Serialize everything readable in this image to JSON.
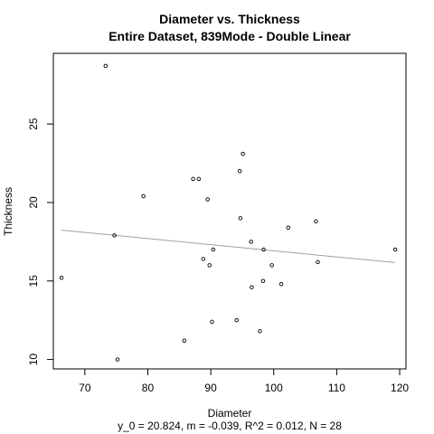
{
  "chart_data": {
    "type": "scatter",
    "title": "Diameter vs. Thickness",
    "subtitle": "Entire Dataset, 839Mode - Double Linear",
    "xlabel": "Diameter",
    "ylabel": "Thickness",
    "footer": "y_0 = 20.824, m = -0.039, R^2 = 0.012, N = 28",
    "xlim": [
      65.0,
      121.0
    ],
    "ylim": [
      9.4,
      29.5
    ],
    "xticks": [
      70,
      80,
      90,
      100,
      110,
      120
    ],
    "yticks": [
      10,
      15,
      20,
      25
    ],
    "grid": false,
    "points": [
      {
        "x": 66.3,
        "y": 15.2
      },
      {
        "x": 73.3,
        "y": 28.7
      },
      {
        "x": 74.7,
        "y": 17.9
      },
      {
        "x": 75.2,
        "y": 10.0
      },
      {
        "x": 79.3,
        "y": 20.4
      },
      {
        "x": 85.8,
        "y": 11.2
      },
      {
        "x": 87.2,
        "y": 21.5
      },
      {
        "x": 88.1,
        "y": 21.5
      },
      {
        "x": 88.8,
        "y": 16.4
      },
      {
        "x": 89.5,
        "y": 20.2
      },
      {
        "x": 89.8,
        "y": 16.0
      },
      {
        "x": 90.2,
        "y": 12.4
      },
      {
        "x": 90.4,
        "y": 17.0
      },
      {
        "x": 94.1,
        "y": 12.5
      },
      {
        "x": 94.6,
        "y": 22.0
      },
      {
        "x": 94.7,
        "y": 19.0
      },
      {
        "x": 95.1,
        "y": 23.1
      },
      {
        "x": 96.4,
        "y": 17.5
      },
      {
        "x": 96.5,
        "y": 14.6
      },
      {
        "x": 97.8,
        "y": 11.8
      },
      {
        "x": 98.3,
        "y": 15.0
      },
      {
        "x": 98.4,
        "y": 17.0
      },
      {
        "x": 99.7,
        "y": 16.0
      },
      {
        "x": 101.2,
        "y": 14.8
      },
      {
        "x": 102.3,
        "y": 18.4
      },
      {
        "x": 106.7,
        "y": 18.8
      },
      {
        "x": 107.0,
        "y": 16.2
      },
      {
        "x": 119.3,
        "y": 17.0
      }
    ],
    "fit_line": {
      "intercept": 20.824,
      "slope": -0.039,
      "x_range": [
        66.3,
        119.3
      ],
      "color": "#a0a0a0"
    }
  }
}
